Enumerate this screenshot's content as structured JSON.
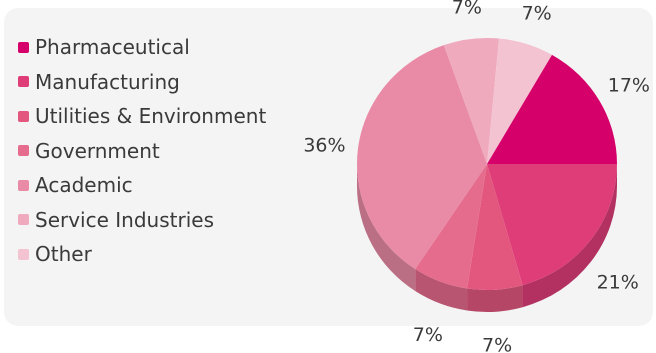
{
  "chart_data": {
    "type": "pie",
    "title": "",
    "categories": [
      "Pharmaceutical",
      "Manufacturing",
      "Utilities & Environment",
      "Government",
      "Academic",
      "Service Industries",
      "Other"
    ],
    "values": [
      17,
      21,
      7,
      7,
      36,
      7,
      7
    ],
    "labels": [
      "17%",
      "21%",
      "7%",
      "7%",
      "36%",
      "7%",
      "7%"
    ],
    "colors": [
      "#d6006a",
      "#df3d78",
      "#e3577f",
      "#e66c8d",
      "#e98ba6",
      "#efaabe",
      "#f3c3d1"
    ],
    "legend_position": "left",
    "three_d": true
  }
}
